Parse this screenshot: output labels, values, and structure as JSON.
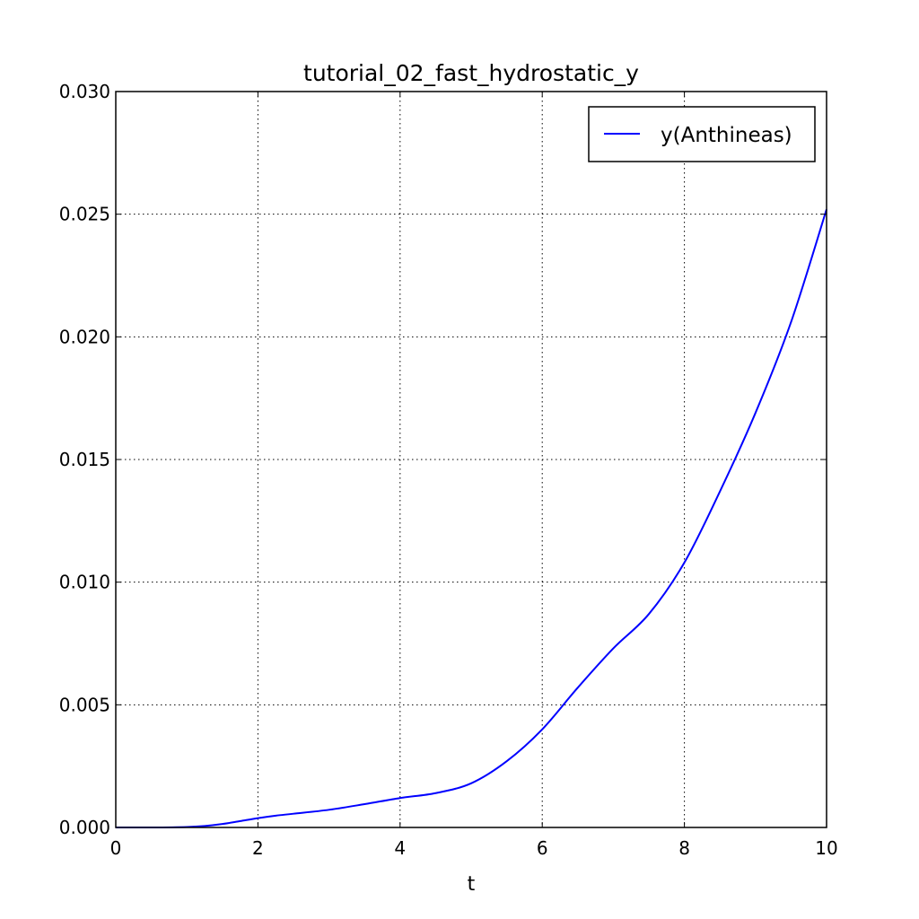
{
  "chart_data": {
    "type": "line",
    "title": "tutorial_02_fast_hydrostatic_y",
    "xlabel": "t",
    "ylabel": "",
    "xlim": [
      0,
      10
    ],
    "ylim": [
      0,
      0.03
    ],
    "xticks": [
      0,
      2,
      4,
      6,
      8,
      10
    ],
    "xtick_labels": [
      "0",
      "2",
      "4",
      "6",
      "8",
      "10"
    ],
    "yticks": [
      0,
      0.005,
      0.01,
      0.015,
      0.02,
      0.025,
      0.03
    ],
    "ytick_labels": [
      "0.000",
      "0.005",
      "0.010",
      "0.015",
      "0.020",
      "0.025",
      "0.030"
    ],
    "grid": true,
    "legend_position": "top-right",
    "series": [
      {
        "name": "y(Anthineas)",
        "color": "#0000ff",
        "x": [
          0,
          0.5,
          1.0,
          1.25,
          1.5,
          1.75,
          2.0,
          2.25,
          2.5,
          3.0,
          3.5,
          4.0,
          4.5,
          5.0,
          5.5,
          6.0,
          6.5,
          7.0,
          7.5,
          8.0,
          8.5,
          9.0,
          9.5,
          10.0
        ],
        "y": [
          0,
          0,
          2e-05,
          6e-05,
          0.00014,
          0.00026,
          0.00038,
          0.00048,
          0.00056,
          0.00072,
          0.00095,
          0.0012,
          0.0014,
          0.0018,
          0.0027,
          0.004,
          0.0057,
          0.0073,
          0.0087,
          0.0108,
          0.0137,
          0.0169,
          0.0206,
          0.0252
        ]
      }
    ]
  }
}
